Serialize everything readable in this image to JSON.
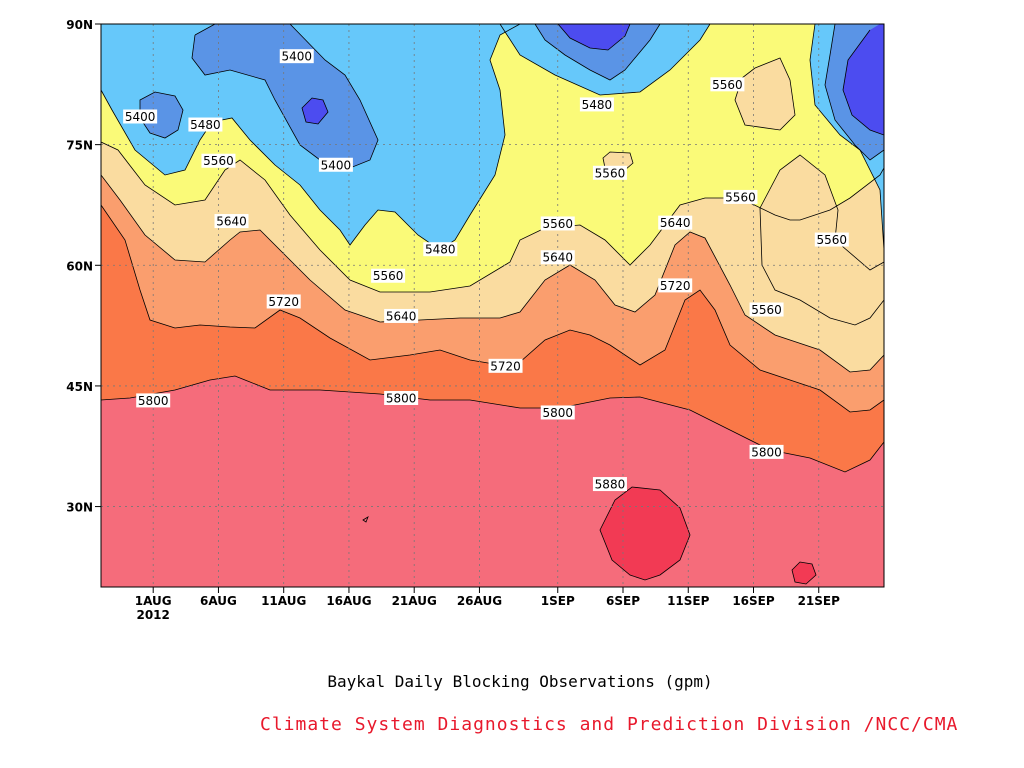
{
  "caption": "Baykal Daily Blocking Observations (gpm)",
  "credit": "Climate System Diagnostics and Prediction Division /NCC/CMA",
  "chart_data": {
    "type": "contour",
    "title": "",
    "xlabel": "",
    "ylabel": "",
    "x_ticks": [
      "1AUG",
      "6AUG",
      "11AUG",
      "16AUG",
      "21AUG",
      "26AUG",
      "1SEP",
      "6SEP",
      "11SEP",
      "16SEP",
      "21SEP"
    ],
    "x_tick_sublabel": "2012",
    "x_range": [
      "2012-07-28",
      "2012-09-26"
    ],
    "y_ticks": [
      "90N",
      "75N",
      "60N",
      "45N",
      "30N"
    ],
    "y_range": [
      20,
      90
    ],
    "grid": "dotted",
    "levels": [
      5400,
      5480,
      5560,
      5640,
      5720,
      5800,
      5880
    ],
    "band_colors": [
      "#4c4cf0",
      "#5a94e6",
      "#66c8fa",
      "#fafa78",
      "#fadca0",
      "#fa9e6e",
      "#fa7848",
      "#f56c7b",
      "#f23a54"
    ],
    "contour_labels": [
      {
        "text": "5400",
        "date": "2012-07-31",
        "lat": 78.5
      },
      {
        "text": "5400",
        "date": "2012-08-12",
        "lat": 86
      },
      {
        "text": "5400",
        "date": "2012-08-15",
        "lat": 72.5
      },
      {
        "text": "5480",
        "date": "2012-08-05",
        "lat": 77.5
      },
      {
        "text": "5480",
        "date": "2012-08-23",
        "lat": 62
      },
      {
        "text": "5480",
        "date": "2012-09-04",
        "lat": 80
      },
      {
        "text": "5560",
        "date": "2012-08-06",
        "lat": 73
      },
      {
        "text": "5560",
        "date": "2012-08-19",
        "lat": 58.7
      },
      {
        "text": "5560",
        "date": "2012-09-01",
        "lat": 65.2
      },
      {
        "text": "5560",
        "date": "2012-09-05",
        "lat": 71.5
      },
      {
        "text": "5560",
        "date": "2012-09-14",
        "lat": 82.5
      },
      {
        "text": "5560",
        "date": "2012-09-15",
        "lat": 68.5
      },
      {
        "text": "5560",
        "date": "2012-09-17",
        "lat": 54.5
      },
      {
        "text": "5560",
        "date": "2012-09-22",
        "lat": 63.2
      },
      {
        "text": "5640",
        "date": "2012-08-07",
        "lat": 65.5
      },
      {
        "text": "5640",
        "date": "2012-08-20",
        "lat": 53.7
      },
      {
        "text": "5640",
        "date": "2012-09-01",
        "lat": 61
      },
      {
        "text": "5640",
        "date": "2012-09-10",
        "lat": 65.3
      },
      {
        "text": "5720",
        "date": "2012-08-11",
        "lat": 55.5
      },
      {
        "text": "5720",
        "date": "2012-08-28",
        "lat": 47.5
      },
      {
        "text": "5720",
        "date": "2012-09-10",
        "lat": 57.5
      },
      {
        "text": "5800",
        "date": "2012-08-01",
        "lat": 43.2
      },
      {
        "text": "5800",
        "date": "2012-08-20",
        "lat": 43.5
      },
      {
        "text": "5800",
        "date": "2012-09-01",
        "lat": 41.7
      },
      {
        "text": "5800",
        "date": "2012-09-17",
        "lat": 36.8
      },
      {
        "text": "5880",
        "date": "2012-09-05",
        "lat": 32.8
      }
    ]
  }
}
